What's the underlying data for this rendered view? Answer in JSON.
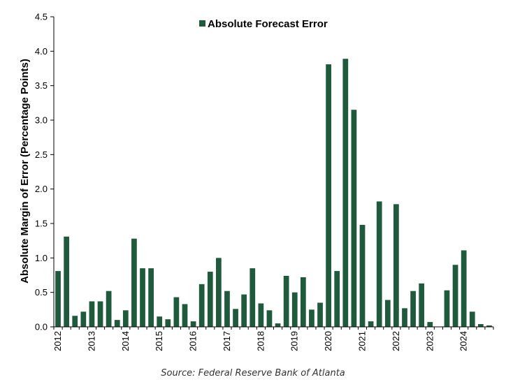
{
  "chart_data": {
    "type": "bar",
    "ylabel": "Absolute Margin of Error (Percentage Points)",
    "xlabel": "",
    "ylim": [
      0,
      4.5
    ],
    "yticks": [
      "0.0",
      "0.5",
      "1.0",
      "1.5",
      "2.0",
      "2.5",
      "3.0",
      "3.5",
      "4.0",
      "4.5"
    ],
    "grid": false,
    "legend_position": "top",
    "color": "#1f5a3d",
    "series": [
      {
        "name": "Absolute Forecast Error",
        "values": [
          0.81,
          1.31,
          0.16,
          0.22,
          0.37,
          0.37,
          0.52,
          0.1,
          0.24,
          1.28,
          0.85,
          0.85,
          0.15,
          0.11,
          0.43,
          0.33,
          0.08,
          0.62,
          0.8,
          1.0,
          0.52,
          0.26,
          0.47,
          0.85,
          0.34,
          0.24,
          0.05,
          0.74,
          0.5,
          0.72,
          0.25,
          0.35,
          3.81,
          0.81,
          3.89,
          3.15,
          1.48,
          0.08,
          1.82,
          0.39,
          1.78,
          0.27,
          0.52,
          0.63,
          0.07,
          0.0,
          0.53,
          0.9,
          1.11,
          0.22,
          0.04,
          0.02
        ]
      }
    ],
    "year_labels": [
      {
        "label": "2012",
        "index": 0
      },
      {
        "label": "2013",
        "index": 4
      },
      {
        "label": "2014",
        "index": 8
      },
      {
        "label": "2015",
        "index": 12
      },
      {
        "label": "2016",
        "index": 16
      },
      {
        "label": "2017",
        "index": 20
      },
      {
        "label": "2018",
        "index": 24
      },
      {
        "label": "2019",
        "index": 28
      },
      {
        "label": "2020",
        "index": 32
      },
      {
        "label": "2021",
        "index": 36
      },
      {
        "label": "2022",
        "index": 40
      },
      {
        "label": "2023",
        "index": 44
      },
      {
        "label": "2024",
        "index": 48
      }
    ]
  },
  "source": "Source: Federal Reserve Bank of Atlanta"
}
